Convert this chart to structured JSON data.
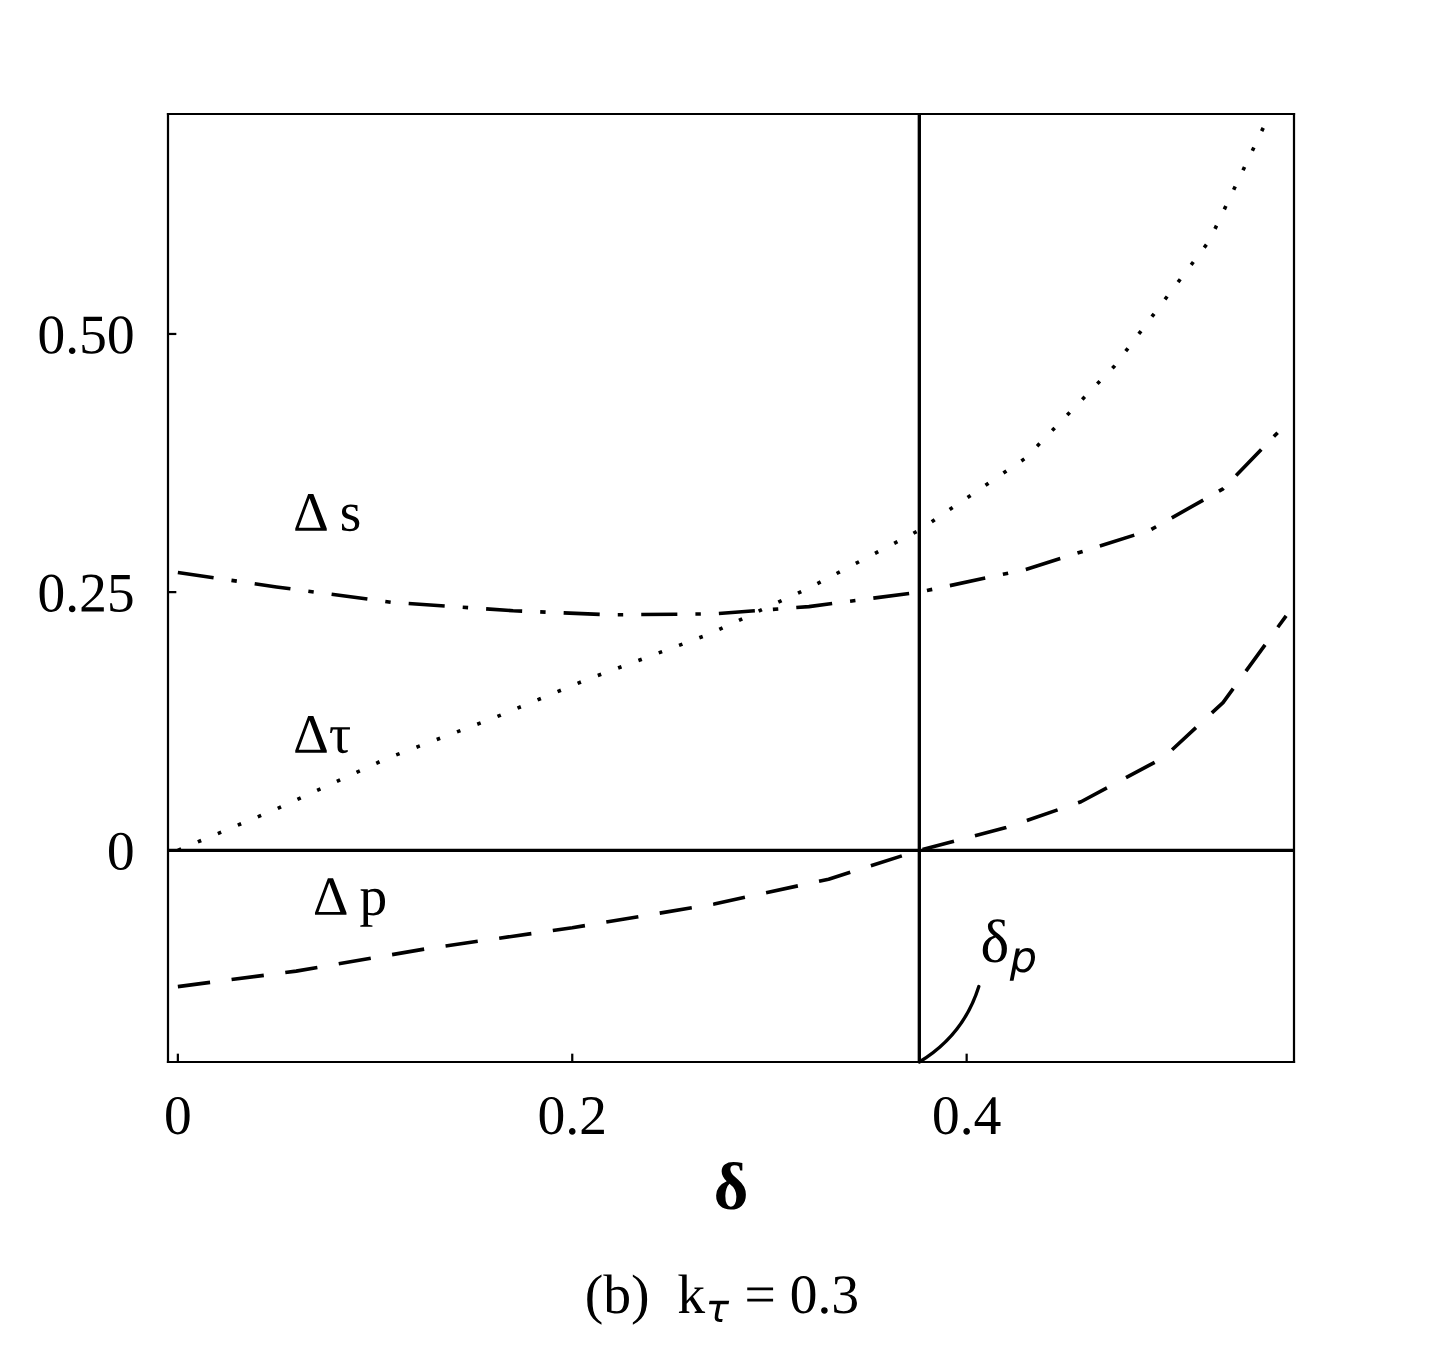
{
  "chart_data": {
    "type": "line",
    "xlabel": "δ",
    "series": [
      {
        "name": "Δ s",
        "color": "#000000",
        "line_style": "dashdot",
        "x": [
          0,
          0.05,
          0.109,
          0.17,
          0.22,
          0.272,
          0.32,
          0.376,
          0.43,
          0.493,
          0.53,
          0.559
        ],
        "values": [
          0.269,
          0.255,
          0.24,
          0.232,
          0.228,
          0.229,
          0.236,
          0.25,
          0.272,
          0.31,
          0.35,
          0.407
        ]
      },
      {
        "name": "Δτ",
        "color": "#000000",
        "line_style": "dotted",
        "x": [
          0,
          0.05,
          0.106,
          0.16,
          0.207,
          0.269,
          0.32,
          0.376,
          0.43,
          0.475,
          0.523,
          0.553
        ],
        "values": [
          0,
          0.04,
          0.089,
          0.128,
          0.165,
          0.209,
          0.254,
          0.31,
          0.38,
          0.469,
          0.59,
          0.71
        ]
      },
      {
        "name": "Δ p",
        "color": "#000000",
        "line_style": "dashed",
        "x": [
          0,
          0.06,
          0.127,
          0.2,
          0.272,
          0.33,
          0.376,
          0.42,
          0.458,
          0.5,
          0.53,
          0.562
        ],
        "values": [
          -0.132,
          -0.117,
          -0.095,
          -0.075,
          -0.052,
          -0.028,
          0,
          0.022,
          0.047,
          0.09,
          0.143,
          0.227
        ]
      }
    ],
    "xlim": [
      -0.005,
      0.566
    ],
    "ylim": [
      -0.205,
      0.713
    ],
    "xticks": [
      0,
      0.2,
      0.4
    ],
    "yticks": [
      {
        "value": 0,
        "label": "0"
      },
      {
        "value": 0.25,
        "label": "0.25"
      },
      {
        "value": 0.5,
        "label": "0.50"
      }
    ],
    "ref_lines": [
      {
        "axis": "y",
        "value": 0,
        "color": "#000000",
        "line_style": "solid"
      },
      {
        "axis": "x",
        "value": 0.376,
        "color": "#000000",
        "line_style": "solid"
      }
    ],
    "annotations": [
      {
        "text": "δ$_{p}$",
        "x": 0.376,
        "y": -0.205
      },
      "(b)  k$_{τ}$ = 0.3"
    ],
    "grid": false,
    "legend": false
  }
}
